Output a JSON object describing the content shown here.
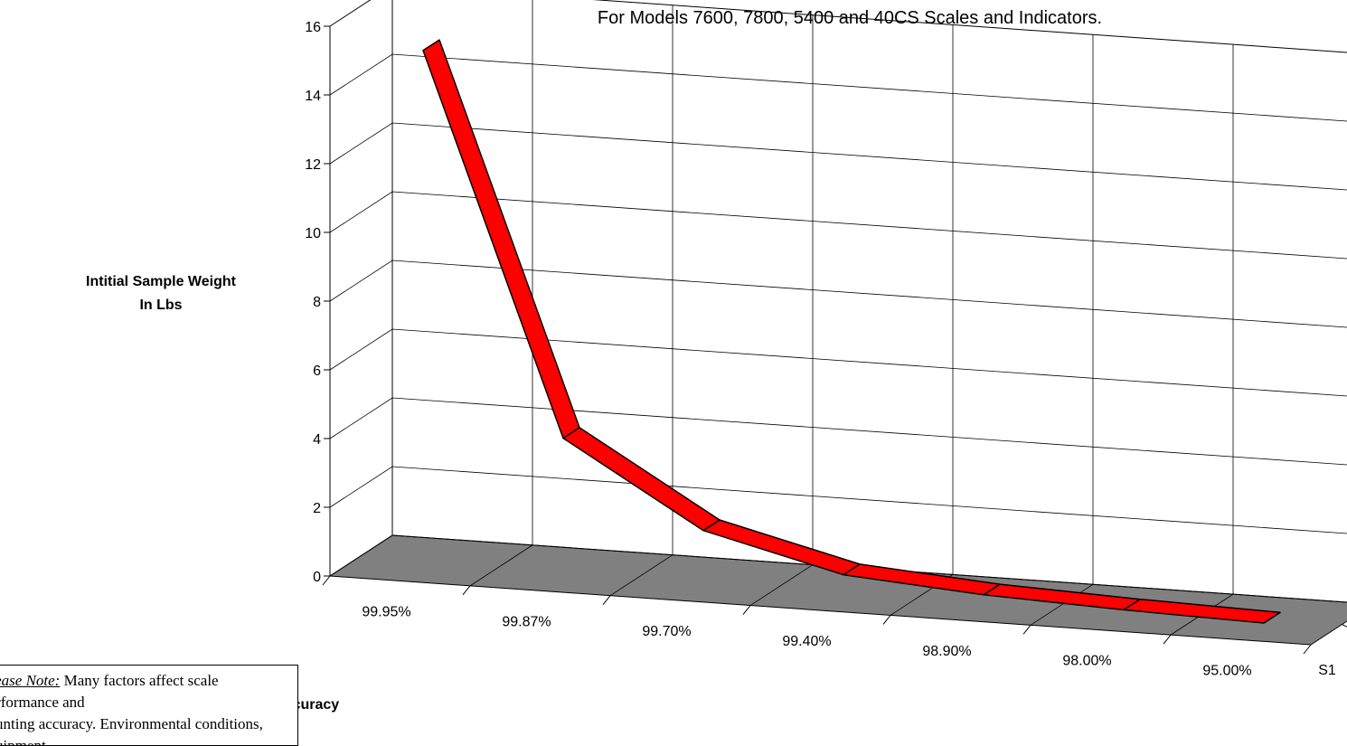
{
  "chart_data": {
    "type": "line",
    "style": "3d-ribbon",
    "title": "For Models 7600, 7800, 5400 and 40CS Scales and Indicators.",
    "ylabel_line1": "Intitial Sample Weight",
    "ylabel_line2": "In Lbs",
    "xlabel": "Percentage Of Accuracy",
    "categories": [
      "99.95%",
      "99.87%",
      "99.70%",
      "99.40%",
      "98.90%",
      "98.00%",
      "95.00%"
    ],
    "series": [
      {
        "name": "S1",
        "values": [
          15,
          4,
          1.6,
          0.6,
          0.3,
          0.15,
          0.05
        ]
      }
    ],
    "yticks": [
      "0",
      "2",
      "4",
      "6",
      "8",
      "10",
      "12",
      "14",
      "16"
    ],
    "ylim": [
      0,
      16
    ],
    "grid": true,
    "colors": {
      "ribbon": "#ff0000",
      "floor": "#808080",
      "outline": "#000000"
    }
  },
  "note": {
    "lead": "Please Note:",
    "text1": " Many factors affect scale performance and",
    "text2": "counting accuracy. Environmental conditions, equipment"
  }
}
